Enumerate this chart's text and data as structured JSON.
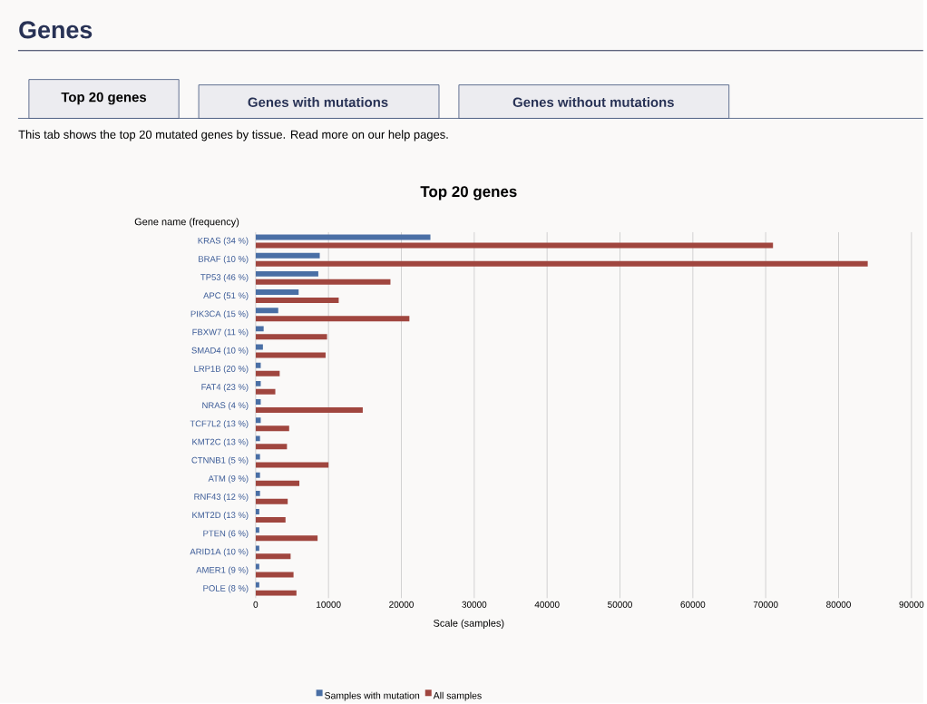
{
  "chart_data": {
    "type": "bar",
    "orientation": "horizontal",
    "title": "Top 20 genes",
    "ylabel": "Gene name (frequency)",
    "xlabel": "Scale (samples)",
    "annotations": [
      "Genes",
      "Top 20 genes",
      "Genes with mutations",
      "Genes without mutations",
      "This tab shows the top 20 mutated genes by tissue. Read more on our help pages."
    ],
    "categories": [
      "KRAS (34 %)",
      "BRAF (10 %)",
      "TP53 (46 %)",
      "APC (51 %)",
      "PIK3CA (15 %)",
      "FBXW7 (11 %)",
      "SMAD4 (10 %)",
      "LRP1B (20 %)",
      "FAT4 (23 %)",
      "NRAS (4 %)",
      "TCF7L2 (13 %)",
      "KMT2C (13 %)",
      "CTNNB1 (5 %)",
      "ATM (9 %)",
      "RNF43 (12 %)",
      "KMT2D (13 %)",
      "PTEN (6 %)",
      "ARID1A (10 %)",
      "AMER1 (9 %)",
      "POLE (8 %)"
    ],
    "series": [
      {
        "name": "Samples with mutation",
        "color": "#4a6fa5",
        "values": [
          24000,
          8800,
          8600,
          5900,
          3100,
          1100,
          1000,
          700,
          700,
          700,
          700,
          600,
          600,
          600,
          600,
          500,
          500,
          500,
          500,
          500
        ]
      },
      {
        "name": "All samples",
        "color": "#a0463f",
        "values": [
          71000,
          84000,
          18500,
          11400,
          21100,
          9800,
          9600,
          3300,
          2700,
          14700,
          4600,
          4300,
          10000,
          6000,
          4400,
          4100,
          8500,
          4800,
          5200,
          5600
        ]
      }
    ],
    "xlim": [
      0,
      90000
    ],
    "xticks": [
      0,
      10000,
      20000,
      30000,
      40000,
      50000,
      60000,
      70000,
      80000,
      90000
    ],
    "grid": "x",
    "legend": "bottom"
  }
}
